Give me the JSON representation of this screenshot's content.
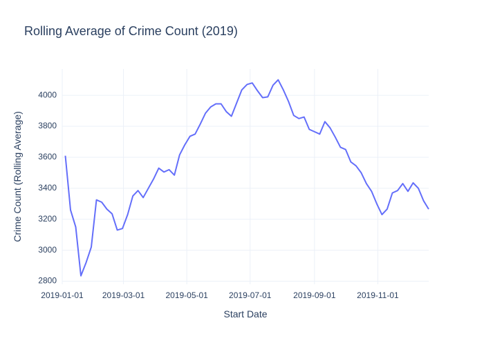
{
  "chart_data": {
    "type": "line",
    "title": "Rolling Average of Crime Count (2019)",
    "x_label": "Start Date",
    "y_label": "Crime Count (Rolling Average)",
    "x": [
      "2019-01-04",
      "2019-01-09",
      "2019-01-14",
      "2019-01-19",
      "2019-01-24",
      "2019-01-29",
      "2019-02-03",
      "2019-02-08",
      "2019-02-13",
      "2019-02-18",
      "2019-02-23",
      "2019-02-28",
      "2019-03-05",
      "2019-03-10",
      "2019-03-15",
      "2019-03-20",
      "2019-03-25",
      "2019-03-30",
      "2019-04-04",
      "2019-04-09",
      "2019-04-14",
      "2019-04-19",
      "2019-04-24",
      "2019-04-29",
      "2019-05-04",
      "2019-05-09",
      "2019-05-14",
      "2019-05-19",
      "2019-05-24",
      "2019-05-29",
      "2019-06-03",
      "2019-06-08",
      "2019-06-13",
      "2019-06-18",
      "2019-06-23",
      "2019-06-28",
      "2019-07-03",
      "2019-07-08",
      "2019-07-13",
      "2019-07-18",
      "2019-07-23",
      "2019-07-28",
      "2019-08-02",
      "2019-08-07",
      "2019-08-12",
      "2019-08-17",
      "2019-08-22",
      "2019-08-27",
      "2019-09-01",
      "2019-09-06",
      "2019-09-11",
      "2019-09-16",
      "2019-09-21",
      "2019-09-26",
      "2019-10-01",
      "2019-10-06",
      "2019-10-11",
      "2019-10-16",
      "2019-10-21",
      "2019-10-26",
      "2019-10-31",
      "2019-11-05",
      "2019-11-10",
      "2019-11-15",
      "2019-11-20",
      "2019-11-25",
      "2019-11-30",
      "2019-12-05",
      "2019-12-10",
      "2019-12-15",
      "2019-12-20"
    ],
    "series": [
      {
        "name": "Crime Count (Rolling Average)",
        "color": "#636efa",
        "values": [
          3610,
          3260,
          3150,
          2835,
          2920,
          3020,
          3325,
          3310,
          3265,
          3235,
          3130,
          3140,
          3230,
          3350,
          3385,
          3340,
          3400,
          3460,
          3530,
          3505,
          3520,
          3485,
          3615,
          3680,
          3735,
          3750,
          3815,
          3885,
          3925,
          3945,
          3945,
          3895,
          3865,
          3950,
          4035,
          4070,
          4080,
          4030,
          3985,
          3990,
          4065,
          4100,
          4035,
          3960,
          3870,
          3850,
          3860,
          3780,
          3765,
          3750,
          3830,
          3790,
          3730,
          3665,
          3650,
          3570,
          3545,
          3500,
          3430,
          3380,
          3300,
          3230,
          3265,
          3370,
          3385,
          3430,
          3380,
          3435,
          3400,
          3320,
          3265
        ]
      }
    ],
    "xlim": [
      "2019-01-01",
      "2019-12-20"
    ],
    "xticks": [
      "2019-01-01",
      "2019-03-01",
      "2019-05-01",
      "2019-07-01",
      "2019-09-01",
      "2019-11-01"
    ],
    "ylim": [
      2780,
      4170
    ],
    "yticks": [
      2800,
      3000,
      3200,
      3400,
      3600,
      3800,
      4000
    ],
    "grid": true
  }
}
